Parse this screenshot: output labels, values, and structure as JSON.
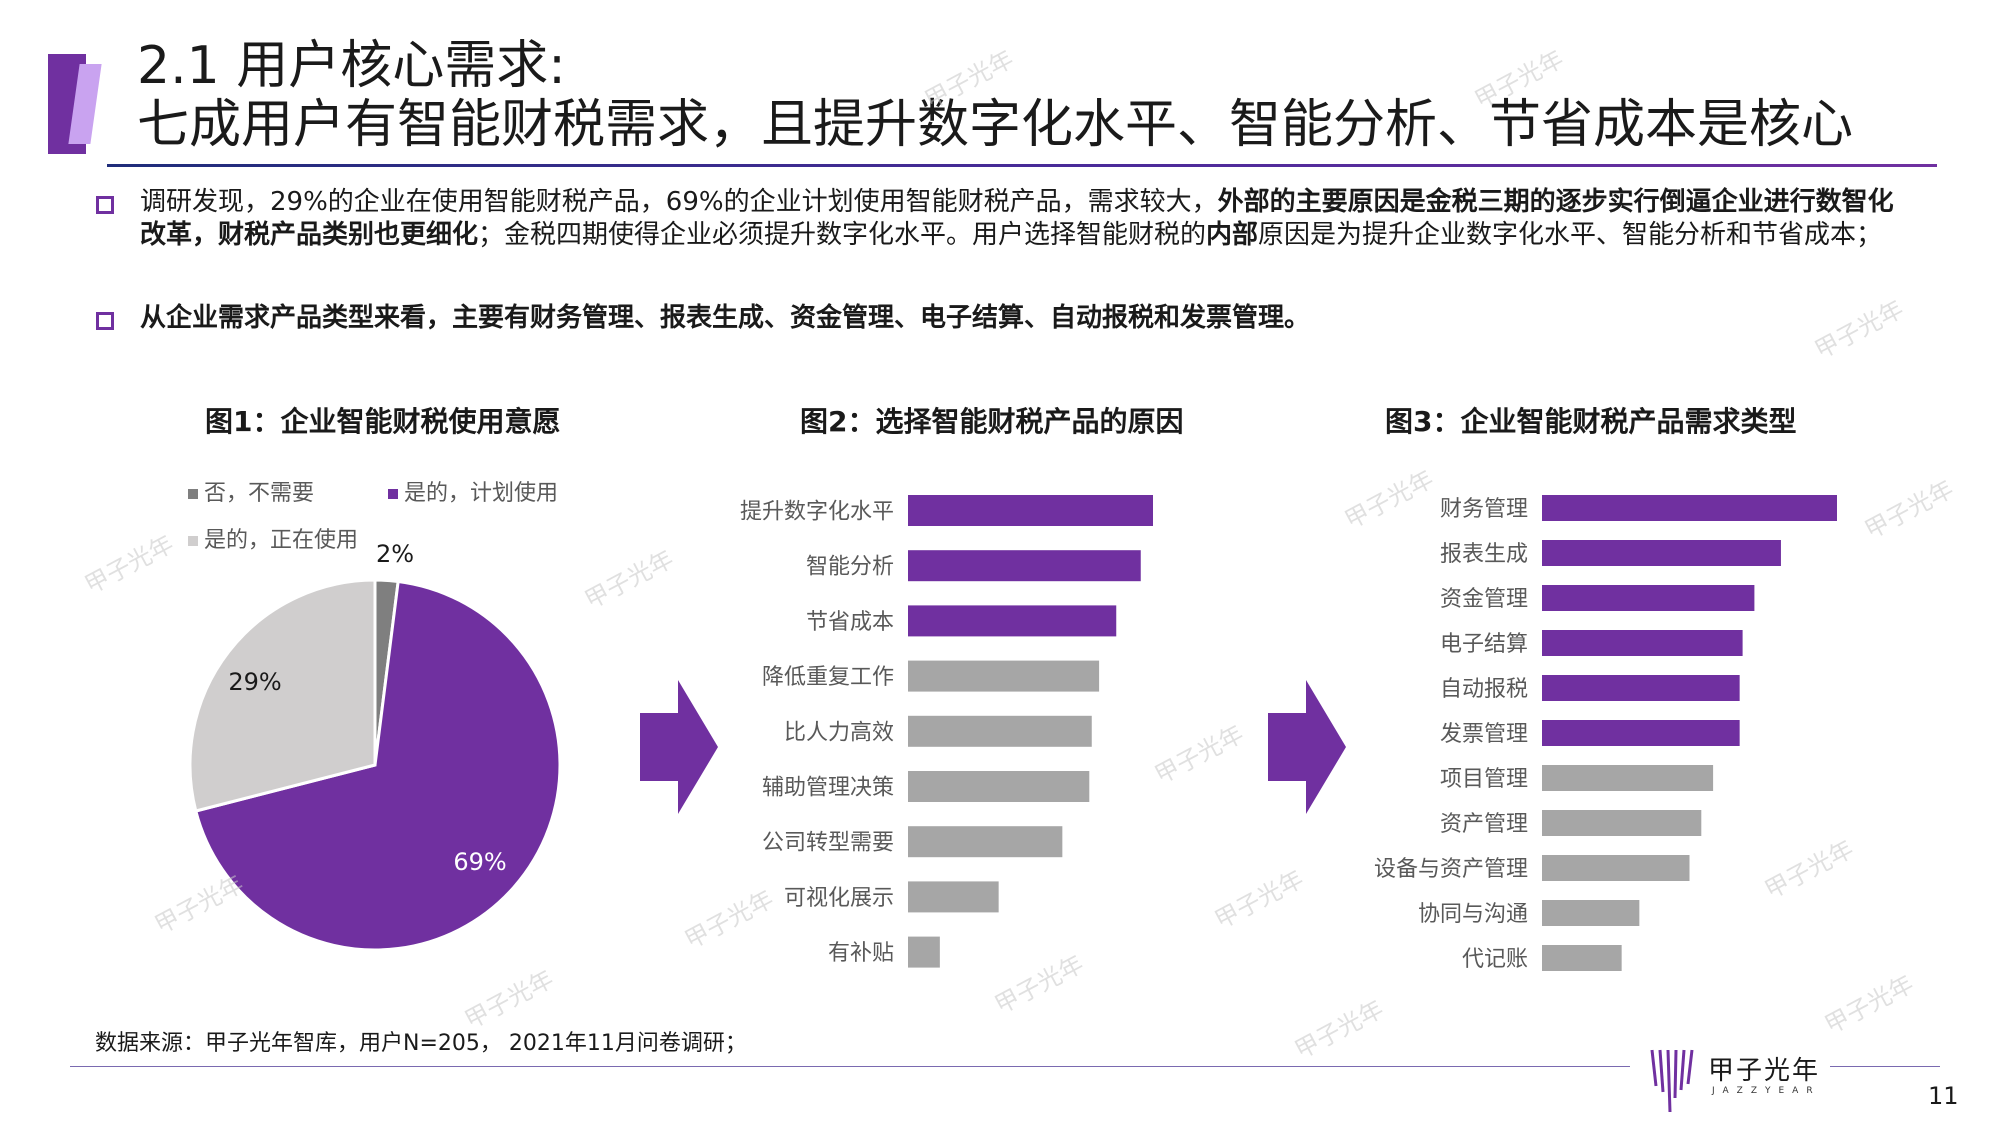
{
  "header": {
    "title_line1": "2.1 用户核心需求:",
    "title_line2": "七成用户有智能财税需求，且提升数字化水平、智能分析、节省成本是核心"
  },
  "bullets": {
    "b1_part1": "调研发现，29%的企业在使用智能财税产品，69%的企业计划使用智能财税产品，需求较大，",
    "b1_bold1": "外部的主要原因是金税三期的逐步实行倒逼企业进行数智化改革，财税产品类别也更细化",
    "b1_part2": "；金税四期使得企业必须提升数字化水平。用户选择智能财税的",
    "b1_bold2": "内部",
    "b1_part3": "原因是为提升企业数字化水平、智能分析和节省成本；",
    "b2": "从企业需求产品类型来看，主要有财务管理、报表生成、资金管理、电子结算、自动报税和发票管理。"
  },
  "colors": {
    "purple": "#7030a0",
    "gray": "#a6a6a6",
    "light_gray": "#d0cece",
    "dark_gray": "#7f7f7f"
  },
  "chart_data": [
    {
      "type": "pie",
      "title": "图1：企业智能财税使用意愿",
      "legend": [
        "否，不需要",
        "是的，计划使用",
        "是的，正在使用"
      ],
      "slices": [
        {
          "label": "否，不需要",
          "value": 2,
          "display": "2%",
          "color": "#7f7f7f"
        },
        {
          "label": "是的，计划使用",
          "value": 69,
          "display": "69%",
          "color": "#7030a0"
        },
        {
          "label": "是的，正在使用",
          "value": 29,
          "display": "29%",
          "color": "#d0cece"
        }
      ]
    },
    {
      "type": "bar",
      "orientation": "horizontal",
      "title": "图2：选择智能财税产品的原因",
      "categories": [
        "提升数字化水平",
        "智能分析",
        "节省成本",
        "降低重复工作",
        "比人力高效",
        "辅助管理决策",
        "公司转型需要",
        "可视化展示",
        "有补贴"
      ],
      "values": [
        100,
        95,
        85,
        78,
        75,
        74,
        63,
        37,
        13
      ],
      "highlight_count": 3,
      "value_scale": "relative (no axis printed)"
    },
    {
      "type": "bar",
      "orientation": "horizontal",
      "title": "图3：企业智能财税产品需求类型",
      "categories": [
        "财务管理",
        "报表生成",
        "资金管理",
        "电子结算",
        "自动报税",
        "发票管理",
        "项目管理",
        "资产管理",
        "设备与资产管理",
        "协同与沟通",
        "代记账"
      ],
      "values": [
        100,
        81,
        72,
        68,
        67,
        67,
        58,
        54,
        50,
        33,
        27
      ],
      "highlight_count": 6,
      "value_scale": "relative (no axis printed)"
    }
  ],
  "footer": {
    "source": "数据来源：甲子光年智库，用户N=205， 2021年11月问卷调研；",
    "logo": "甲子光年",
    "logo_sub": "JAZZYEAR",
    "page_number": "11"
  },
  "watermark": "甲子光年"
}
